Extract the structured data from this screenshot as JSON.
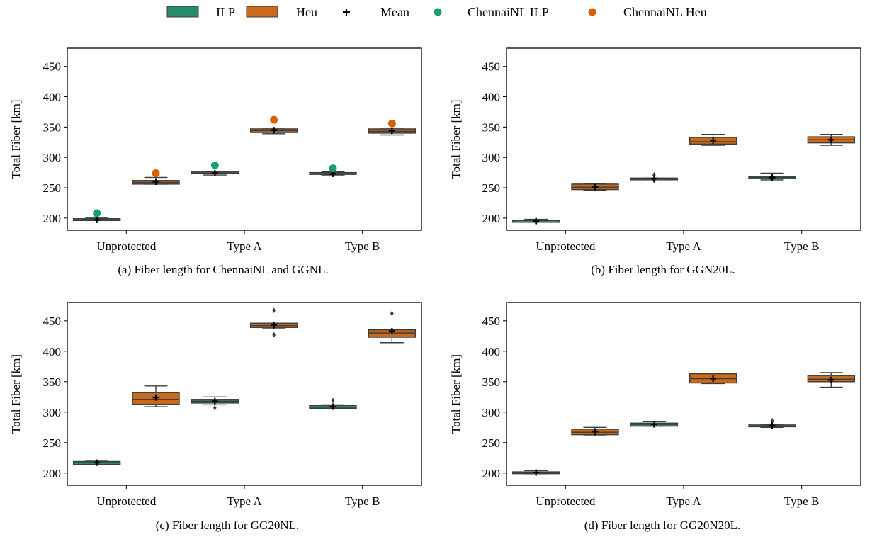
{
  "legend": {
    "items": [
      {
        "label": "ILP",
        "kind": "box",
        "color": "#2a8a6e"
      },
      {
        "label": "Heu",
        "kind": "box",
        "color": "#c96a1b"
      },
      {
        "label": "Mean",
        "kind": "plus",
        "color": "#000000"
      },
      {
        "label": "ChennaiNL ILP",
        "kind": "dot",
        "color": "#1b9e77"
      },
      {
        "label": "ChennaiNL Heu",
        "kind": "dot",
        "color": "#d95f02"
      }
    ]
  },
  "colors": {
    "ilp_fill": "#2a8a6e",
    "heu_fill": "#c96a1b",
    "ilp_dot": "#1b9e77",
    "heu_dot": "#d95f02",
    "whisker": "#3d3d3d"
  },
  "chart_data": [
    {
      "type": "box",
      "caption": "(a) Fiber length for ChennaiNL and GGNL.",
      "ylabel": "Total Fiber [km]",
      "xlabel": "",
      "ylim": [
        180,
        480
      ],
      "yticks": [
        200,
        250,
        300,
        350,
        400,
        450
      ],
      "categories": [
        "Unprotected",
        "Type A",
        "Type B"
      ],
      "series": [
        {
          "name": "ILP",
          "boxes": [
            {
              "whislo": 196,
              "q1": 196,
              "med": 197,
              "q3": 199,
              "whishi": 200,
              "mean": 197,
              "fliers": []
            },
            {
              "whislo": 271,
              "q1": 273,
              "med": 274,
              "q3": 276,
              "whishi": 277,
              "mean": 274,
              "fliers": []
            },
            {
              "whislo": 271,
              "q1": 272,
              "med": 273,
              "q3": 275,
              "whishi": 276,
              "mean": 273,
              "fliers": []
            }
          ]
        },
        {
          "name": "Heu",
          "boxes": [
            {
              "whislo": 256,
              "q1": 256,
              "med": 259,
              "q3": 262,
              "whishi": 267,
              "mean": 260,
              "fliers": []
            },
            {
              "whislo": 339,
              "q1": 341,
              "med": 344,
              "q3": 347,
              "whishi": 347,
              "mean": 345,
              "fliers": []
            },
            {
              "whislo": 337,
              "q1": 340,
              "med": 343,
              "q3": 347,
              "whishi": 347,
              "mean": 344,
              "fliers": []
            }
          ]
        }
      ],
      "chennai": {
        "ILP": [
          208,
          287,
          282
        ],
        "Heu": [
          274,
          362,
          356
        ]
      }
    },
    {
      "type": "box",
      "caption": "(b) Fiber length for GGN20L.",
      "ylabel": "Total Fiber [km]",
      "xlabel": "",
      "ylim": [
        180,
        480
      ],
      "yticks": [
        200,
        250,
        300,
        350,
        400,
        450
      ],
      "categories": [
        "Unprotected",
        "Type A",
        "Type B"
      ],
      "series": [
        {
          "name": "ILP",
          "boxes": [
            {
              "whislo": 195,
              "q1": 195,
              "med": 196,
              "q3": 196,
              "whishi": 198,
              "mean": 195,
              "fliers": [
                193
              ]
            },
            {
              "whislo": 264,
              "q1": 264,
              "med": 265,
              "q3": 266,
              "whishi": 266,
              "mean": 265,
              "fliers": [
                262,
                271
              ]
            },
            {
              "whislo": 263,
              "q1": 265,
              "med": 267,
              "q3": 269,
              "whishi": 274,
              "mean": 267,
              "fliers": []
            }
          ]
        },
        {
          "name": "Heu",
          "boxes": [
            {
              "whislo": 246,
              "q1": 247,
              "med": 251,
              "q3": 256,
              "whishi": 257,
              "mean": 251,
              "fliers": []
            },
            {
              "whislo": 320,
              "q1": 322,
              "med": 326,
              "q3": 333,
              "whishi": 338,
              "mean": 328,
              "fliers": []
            },
            {
              "whislo": 320,
              "q1": 324,
              "med": 329,
              "q3": 334,
              "whishi": 338,
              "mean": 329,
              "fliers": []
            }
          ]
        }
      ]
    },
    {
      "type": "box",
      "caption": "(c) Fiber length for GG20NL.",
      "ylabel": "Total Fiber [km]",
      "xlabel": "",
      "ylim": [
        180,
        480
      ],
      "yticks": [
        200,
        250,
        300,
        350,
        400,
        450
      ],
      "categories": [
        "Unprotected",
        "Type A",
        "Type B"
      ],
      "series": [
        {
          "name": "ILP",
          "boxes": [
            {
              "whislo": 214,
              "q1": 214,
              "med": 217,
              "q3": 219,
              "whishi": 221,
              "mean": 217,
              "fliers": []
            },
            {
              "whislo": 312,
              "q1": 315,
              "med": 318,
              "q3": 321,
              "whishi": 325,
              "mean": 318,
              "fliers": [
                307
              ]
            },
            {
              "whislo": 306,
              "q1": 306,
              "med": 308,
              "q3": 311,
              "whishi": 312,
              "mean": 309,
              "fliers": [
                319
              ]
            }
          ]
        },
        {
          "name": "Heu",
          "boxes": [
            {
              "whislo": 309,
              "q1": 313,
              "med": 321,
              "q3": 332,
              "whishi": 343,
              "mean": 324,
              "fliers": []
            },
            {
              "whislo": 437,
              "q1": 439,
              "med": 442,
              "q3": 446,
              "whishi": 446,
              "mean": 443,
              "fliers": [
                427,
                467
              ]
            },
            {
              "whislo": 414,
              "q1": 423,
              "med": 430,
              "q3": 435,
              "whishi": 436,
              "mean": 433,
              "fliers": [
                462
              ]
            }
          ]
        }
      ]
    },
    {
      "type": "box",
      "caption": "(d) Fiber length for GG20N20L.",
      "ylabel": "Total Fiber [km]",
      "xlabel": "",
      "ylim": [
        180,
        480
      ],
      "yticks": [
        200,
        250,
        300,
        350,
        400,
        450
      ],
      "categories": [
        "Unprotected",
        "Type A",
        "Type B"
      ],
      "series": [
        {
          "name": "ILP",
          "boxes": [
            {
              "whislo": 199,
              "q1": 199,
              "med": 201,
              "q3": 202,
              "whishi": 204,
              "mean": 201,
              "fliers": []
            },
            {
              "whislo": 277,
              "q1": 277,
              "med": 280,
              "q3": 282,
              "whishi": 285,
              "mean": 280,
              "fliers": []
            },
            {
              "whislo": 275,
              "q1": 276,
              "med": 277,
              "q3": 279,
              "whishi": 279,
              "mean": 278,
              "fliers": [
                286
              ]
            }
          ]
        },
        {
          "name": "Heu",
          "boxes": [
            {
              "whislo": 261,
              "q1": 263,
              "med": 267,
              "q3": 272,
              "whishi": 275,
              "mean": 268,
              "fliers": []
            },
            {
              "whislo": 347,
              "q1": 348,
              "med": 355,
              "q3": 363,
              "whishi": 363,
              "mean": 355,
              "fliers": []
            },
            {
              "whislo": 341,
              "q1": 350,
              "med": 354,
              "q3": 360,
              "whishi": 365,
              "mean": 353,
              "fliers": []
            }
          ]
        }
      ]
    }
  ]
}
